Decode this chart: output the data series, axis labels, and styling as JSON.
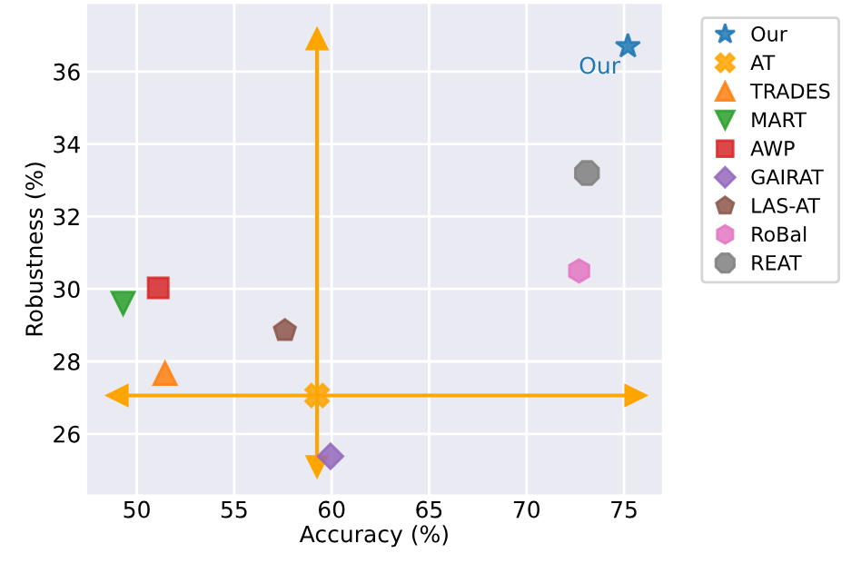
{
  "chart_data": {
    "type": "scatter",
    "xlabel": "Accuracy (%)",
    "ylabel": "Robustness (%)",
    "xlim": [
      47.4,
      77.0
    ],
    "ylim": [
      24.3,
      37.9
    ],
    "xticks": [
      50,
      55,
      60,
      65,
      70,
      75
    ],
    "yticks": [
      26,
      28,
      30,
      32,
      34,
      36
    ],
    "grid": true,
    "legend": "top right",
    "series": [
      {
        "name": "Our",
        "color": "#1f77b4",
        "marker": "star",
        "x": [
          75.2
        ],
        "values": [
          36.7
        ]
      },
      {
        "name": "AT",
        "color": "#ffa500",
        "marker": "cross",
        "x": [
          59.25
        ],
        "values": [
          27.06
        ]
      },
      {
        "name": "TRADES",
        "color": "#ff7f0e",
        "marker": "triangle",
        "x": [
          51.45
        ],
        "values": [
          27.67
        ]
      },
      {
        "name": "MART",
        "color": "#2ca02c",
        "marker": "triangle_down",
        "x": [
          49.3
        ],
        "values": [
          29.6
        ]
      },
      {
        "name": "AWP",
        "color": "#d62728",
        "marker": "square",
        "x": [
          51.1
        ],
        "values": [
          30.03
        ]
      },
      {
        "name": "GAIRAT",
        "color": "#9467bd",
        "marker": "diamond",
        "x": [
          59.94
        ],
        "values": [
          25.38
        ]
      },
      {
        "name": "LAS-AT",
        "color": "#8c564b",
        "x": [
          57.6
        ],
        "values": [
          28.85
        ]
      },
      {
        "name": "RoBal",
        "color": "#e377c2",
        "x": [
          72.7
        ],
        "values": [
          30.5
        ]
      },
      {
        "name": "REAT",
        "color": "#7f7f7f",
        "marker": "circle",
        "x": [
          73.1
        ],
        "values": [
          33.2
        ]
      },
      {
        "type": "line",
        "color": "#ffa500",
        "marker": "triangle",
        "x": [
          49.0,
          75.6
        ],
        "values": [
          27.06,
          27.06
        ]
      },
      {
        "type": "line",
        "color": "#ffa500",
        "marker": "triangle",
        "x": [
          59.25,
          59.25
        ],
        "values": [
          25.1,
          36.9
        ]
      }
    ],
    "annotations": [
      {
        "text": "Our",
        "x": 75.2,
        "y": 36.7
      }
    ]
  }
}
